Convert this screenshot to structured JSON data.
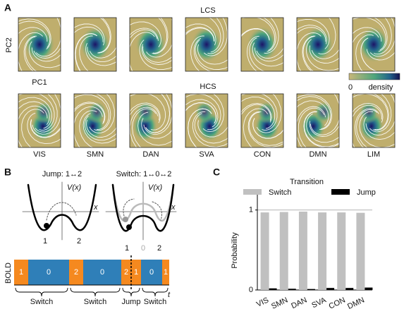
{
  "panel_labels": [
    "A",
    "B",
    "C"
  ],
  "panel_a": {
    "top_title": "LCS",
    "bottom_title": "HCS",
    "y_label": "PC2",
    "x_label": "PC1",
    "colorbar": {
      "min_label": "0",
      "label": "density"
    },
    "networks": [
      "VIS",
      "SMN",
      "DAN",
      "SVA",
      "CON",
      "DMN",
      "LIM"
    ]
  },
  "panel_b": {
    "jump_title": "Jump: 1↔2",
    "switch_title": "Switch: 1↔0↔2",
    "potential_label": "V(x)",
    "x_label": "x",
    "jump_wells": [
      "1",
      "2"
    ],
    "switch_wells": [
      "1",
      "0",
      "2"
    ],
    "bold_label": "BOLD",
    "states": [
      "1",
      "0",
      "2",
      "0",
      "2",
      "1",
      "0",
      "1"
    ],
    "transitions": [
      "Switch",
      "Switch",
      "Jump",
      "Switch"
    ],
    "time_label": "t"
  },
  "chart_data": {
    "type": "bar",
    "legend_title": "Transition",
    "y_label": "Probability",
    "categories": [
      "VIS",
      "SMN",
      "DAN",
      "SVA",
      "CON",
      "DMN"
    ],
    "series": [
      {
        "name": "Switch",
        "color": "#c0c0c0",
        "values": [
          0.97,
          0.975,
          0.98,
          0.97,
          0.97,
          0.965
        ]
      },
      {
        "name": "Jump",
        "color": "#000000",
        "values": [
          0.02,
          0.015,
          0.012,
          0.025,
          0.025,
          0.03
        ]
      }
    ],
    "ylim": [
      0,
      1.2
    ],
    "yticks": [
      0,
      1
    ],
    "grid": true
  }
}
